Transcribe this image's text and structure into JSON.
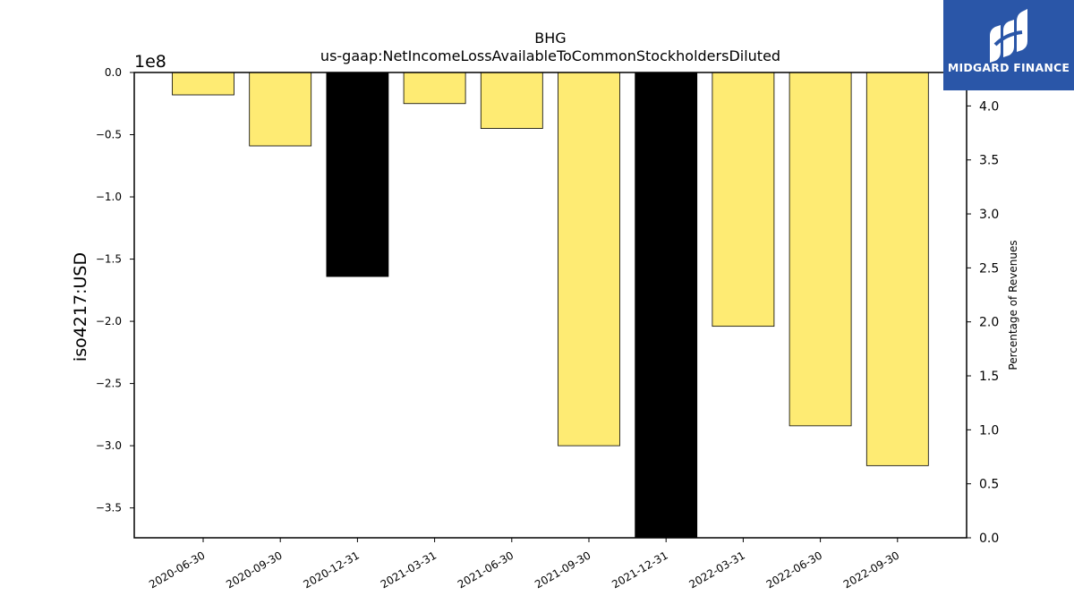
{
  "logo": {
    "name": "MIDGARD FINANCE",
    "icon": "midgard-logo-mark",
    "background": "#2a56a8"
  },
  "chart_data": {
    "type": "bar",
    "title": "BHG",
    "subtitle": "us-gaap:NetIncomeLossAvailableToCommonStockholdersDiluted",
    "ylabel": "iso4217:USD",
    "y_offset_label": "1e8",
    "y2label": "Percentage of Revenues",
    "categories": [
      "2020-06-30",
      "2020-09-30",
      "2020-12-31",
      "2021-03-31",
      "2021-06-30",
      "2021-09-30",
      "2021-12-31",
      "2022-03-31",
      "2022-06-30",
      "2022-09-30"
    ],
    "values": [
      -0.18,
      -0.59,
      -1.64,
      -0.25,
      -0.45,
      -3.0,
      -3.74,
      -2.04,
      -2.84,
      -3.16
    ],
    "bar_colors": [
      "#feeb73",
      "#feeb73",
      "#000000",
      "#feeb73",
      "#feeb73",
      "#feeb73",
      "#000000",
      "#feeb73",
      "#feeb73",
      "#feeb73"
    ],
    "ylim": [
      -3.74,
      0.0
    ],
    "yticks": [
      0.0,
      -0.5,
      -1.0,
      -1.5,
      -2.0,
      -2.5,
      -3.0,
      -3.5
    ],
    "ytick_labels": [
      "0.0",
      "−0.5",
      "−1.0",
      "−1.5",
      "−2.0",
      "−2.5",
      "−3.0",
      "−3.5"
    ],
    "y2lim": [
      0.0,
      4.31
    ],
    "y2ticks": [
      0.0,
      0.5,
      1.0,
      1.5,
      2.0,
      2.5,
      3.0,
      3.5,
      4.0
    ],
    "y2tick_labels": [
      "0.0",
      "0.5",
      "1.0",
      "1.5",
      "2.0",
      "2.5",
      "3.0",
      "3.5",
      "4.0"
    ],
    "grid": false
  }
}
